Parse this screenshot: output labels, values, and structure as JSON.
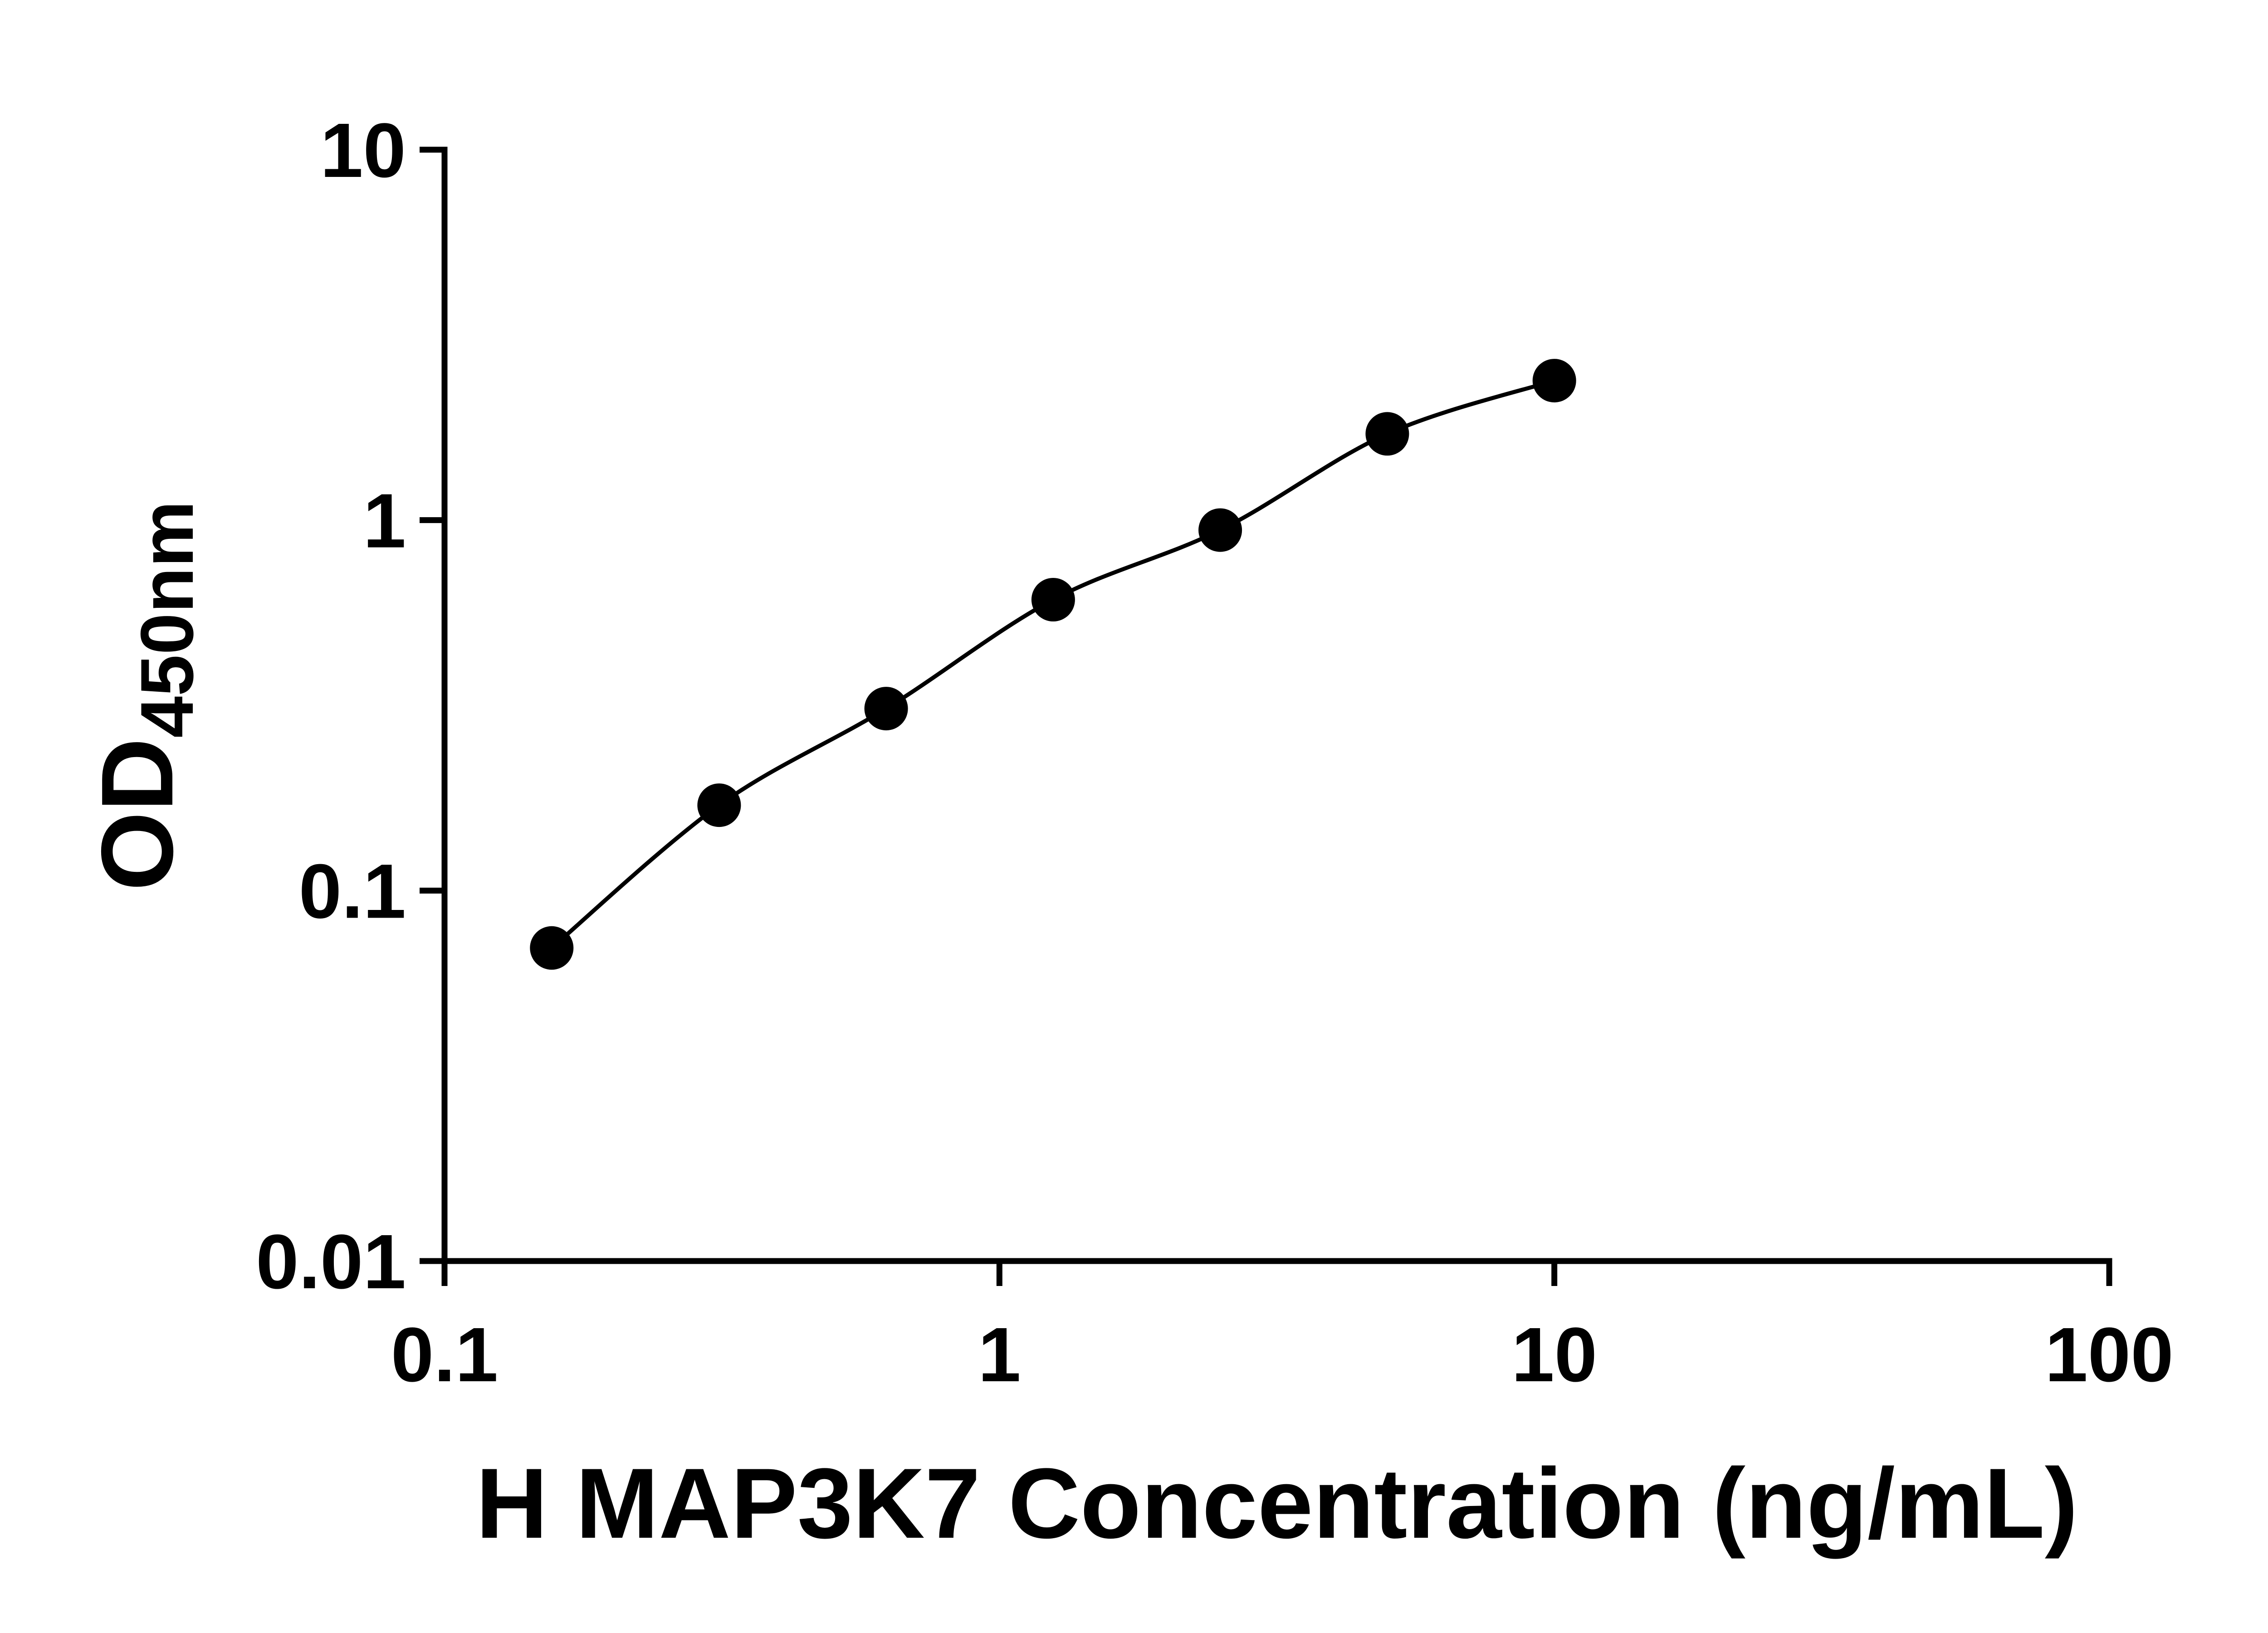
{
  "figure": {
    "background": "#ffffff"
  },
  "chart_data": {
    "type": "scatter",
    "title": "",
    "xlabel": "H MAP3K7 Concentration (ng/mL)",
    "ylabel": "OD",
    "ylabel_subscript": "450nm",
    "x_scale": "log10",
    "y_scale": "log10",
    "xlim": [
      0.1,
      100
    ],
    "ylim": [
      0.01,
      10
    ],
    "x_tick_values": [
      0.1,
      1,
      10,
      100
    ],
    "x_tick_labels": [
      "0.1",
      "1",
      "10",
      "100"
    ],
    "y_tick_values": [
      0.01,
      0.1,
      1,
      10
    ],
    "y_tick_labels": [
      "0.01",
      "0.1",
      "1",
      "10"
    ],
    "grid": false,
    "legend": false,
    "axis_color": "#000000",
    "line_color": "#000000",
    "marker_color": "#000000",
    "marker": "filled-circle",
    "line_style": "smooth-fit-curve",
    "series": [
      {
        "points": [
          {
            "x": 0.156,
            "y": 0.07
          },
          {
            "x": 0.3125,
            "y": 0.17
          },
          {
            "x": 0.625,
            "y": 0.31
          },
          {
            "x": 1.25,
            "y": 0.61
          },
          {
            "x": 2.5,
            "y": 0.94
          },
          {
            "x": 5,
            "y": 1.71
          },
          {
            "x": 10,
            "y": 2.38
          }
        ]
      }
    ]
  }
}
